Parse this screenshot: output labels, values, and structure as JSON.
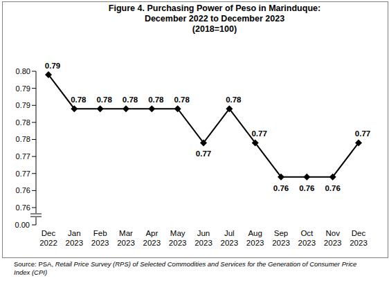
{
  "chart_data": {
    "type": "line",
    "title": [
      "Figure 4. Purchasing Power of Peso in Marinduque:",
      "December 2022 to December 2023",
      "(2018=100)"
    ],
    "categories": [
      "Dec 2022",
      "Jan 2023",
      "Feb 2023",
      "Mar 2023",
      "Apr 2023",
      "May 2023",
      "Jun 2023",
      "Jul 2023",
      "Aug 2023",
      "Sep 2023",
      "Oct 2023",
      "Nov 2023",
      "Dec 2023"
    ],
    "values": [
      0.794,
      0.784,
      0.784,
      0.784,
      0.784,
      0.784,
      0.774,
      0.784,
      0.774,
      0.764,
      0.764,
      0.764,
      0.774
    ],
    "value_labels": [
      "0.79",
      "0.78",
      "0.78",
      "0.78",
      "0.78",
      "0.78",
      "0.77",
      "0.78",
      "0.77",
      "0.76",
      "0.76",
      "0.76",
      "0.77"
    ],
    "color": "#000000",
    "marker": "diamond",
    "line_style": "solid",
    "data_labels": true,
    "grid": false,
    "ylim": [
      0.755,
      0.795
    ],
    "yticks": [
      {
        "value": 0.755,
        "label": "0.76"
      },
      {
        "value": 0.76,
        "label": "0.76"
      },
      {
        "value": 0.765,
        "label": "0.77"
      },
      {
        "value": 0.77,
        "label": "0.77"
      },
      {
        "value": 0.775,
        "label": "0.78"
      },
      {
        "value": 0.78,
        "label": "0.78"
      },
      {
        "value": 0.785,
        "label": "0.79"
      },
      {
        "value": 0.79,
        "label": "0.79"
      },
      {
        "value": 0.795,
        "label": "0.80"
      }
    ],
    "broken_axis_ticks": [
      {
        "value": 0,
        "label": "0.00"
      }
    ],
    "source": [
      "Source: PSA, ",
      "Retail Price Survey (RPS) of Selected Commodities and Services for the Generation of Consumer Price Index (CPI)"
    ]
  }
}
